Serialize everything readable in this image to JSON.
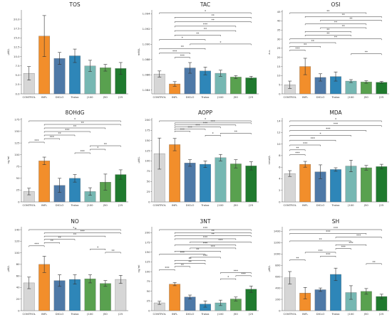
{
  "figure": {
    "background": "#ffffff"
  },
  "categories": [
    "CONTROL",
    "INFL",
    "DICLO",
    "Trolox",
    "J100",
    "J50",
    "J25"
  ],
  "colors": {
    "CONTROL": "#d6d6d6",
    "INFL": "#f28e2b",
    "DICLO": "#4e79a7",
    "Trolox": "#2e86b8",
    "J100": "#76b7b2",
    "J50": "#59a14f",
    "J25": "#1f7a2e"
  },
  "chart_data": [
    {
      "type": "bar",
      "title": "TOS",
      "ylabel": "μM/L",
      "ylim": [
        0,
        22.5
      ],
      "yticks": [
        0,
        2.5,
        5,
        7.5,
        10,
        12.5,
        15,
        17.5,
        20
      ],
      "ytick_labels": [
        "0.0",
        "2.5",
        "5.0",
        "7.5",
        "10.0",
        "12.5",
        "15.0",
        "17.5",
        "20.0"
      ],
      "categories": [
        "CONTROL",
        "INFL",
        "DICLO",
        "Trolox",
        "J100",
        "J50",
        "J25"
      ],
      "values": [
        5.5,
        15.5,
        9.5,
        10.2,
        7.5,
        7.0,
        6.8
      ],
      "errors": [
        1.8,
        5.5,
        1.6,
        1.8,
        1.5,
        0.9,
        1.6
      ],
      "colors": [
        "#d6d6d6",
        "#f28e2b",
        "#4e79a7",
        "#2e86b8",
        "#76b7b2",
        "#59a14f",
        "#1f7a2e"
      ],
      "significance": []
    },
    {
      "type": "bar",
      "title": "TAC",
      "ylabel": "mM/L",
      "ylim": [
        1.0835,
        1.0945
      ],
      "yticks": [
        1.084,
        1.086,
        1.088,
        1.09,
        1.092,
        1.094
      ],
      "ytick_labels": [
        "1.084",
        "1.086",
        "1.088",
        "1.090",
        "1.092",
        "1.094"
      ],
      "categories": [
        "CONTROL",
        "INFL",
        "DICLO",
        "Trolox",
        "J100",
        "J50",
        "J25"
      ],
      "values": [
        1.0861,
        1.0848,
        1.0869,
        1.0865,
        1.0862,
        1.0857,
        1.0856
      ],
      "errors": [
        0.0004,
        0.0003,
        0.0007,
        0.0005,
        0.0004,
        0.0002,
        0.0002
      ],
      "colors": [
        "#d6d6d6",
        "#f28e2b",
        "#4e79a7",
        "#2e86b8",
        "#76b7b2",
        "#59a14f",
        "#1f7a2e"
      ],
      "significance": [
        {
          "from": 0,
          "to": 6,
          "label": "*"
        },
        {
          "from": 1,
          "to": 6,
          "label": "**"
        },
        {
          "from": 1,
          "to": 6,
          "label": "**"
        },
        {
          "from": 1,
          "to": 5,
          "label": "***"
        },
        {
          "from": 1,
          "to": 5,
          "label": "**"
        },
        {
          "from": 1,
          "to": 4,
          "label": "**"
        },
        {
          "from": 0,
          "to": 3,
          "label": "*"
        },
        {
          "from": 2,
          "to": 6,
          "label": "*"
        },
        {
          "from": 0,
          "to": 3,
          "label": "**"
        },
        {
          "from": 0,
          "to": 2,
          "label": "***"
        },
        {
          "from": 1,
          "to": 2,
          "label": "***"
        }
      ]
    },
    {
      "type": "bar",
      "title": "OSI",
      "ylabel": "a.u.",
      "ylim": [
        0,
        46
      ],
      "yticks": [
        0,
        5,
        10,
        15,
        20,
        25,
        30,
        35,
        40,
        45
      ],
      "ytick_labels": [
        "0",
        "5",
        "10",
        "15",
        "20",
        "25",
        "30",
        "35",
        "40",
        "45"
      ],
      "categories": [
        "CONTROL",
        "INFL",
        "DICLO",
        "Trolox",
        "J100",
        "J50",
        "J25"
      ],
      "values": [
        5,
        15,
        9,
        9.5,
        7,
        6.5,
        6.3
      ],
      "errors": [
        2.0,
        4.5,
        2.0,
        2.5,
        0.8,
        0.7,
        0.5
      ],
      "colors": [
        "#d6d6d6",
        "#f28e2b",
        "#4e79a7",
        "#2e86b8",
        "#76b7b2",
        "#59a14f",
        "#1f7a2e"
      ],
      "significance": [
        {
          "from": 0,
          "to": 5,
          "label": "**"
        },
        {
          "from": 1,
          "to": 6,
          "label": "**"
        },
        {
          "from": 2,
          "to": 6,
          "label": "**"
        },
        {
          "from": 1,
          "to": 5,
          "label": "**"
        },
        {
          "from": 2,
          "to": 5,
          "label": "**"
        },
        {
          "from": 1,
          "to": 4,
          "label": "**"
        },
        {
          "from": 1,
          "to": 4,
          "label": "**"
        },
        {
          "from": 0,
          "to": 6,
          "label": "**"
        },
        {
          "from": 0,
          "to": 3,
          "label": "**"
        },
        {
          "from": 0,
          "to": 2,
          "label": "**"
        },
        {
          "from": 0,
          "to": 1,
          "label": "***"
        },
        {
          "from": 4,
          "to": 6,
          "label": "**"
        }
      ]
    },
    {
      "type": "bar",
      "title": "8OHdG",
      "ylabel": "ng/ml",
      "ylim": [
        0,
        178
      ],
      "yticks": [
        0,
        25,
        50,
        75,
        100,
        125,
        150,
        175
      ],
      "ytick_labels": [
        "0",
        "25",
        "50",
        "75",
        "100",
        "125",
        "150",
        "175"
      ],
      "categories": [
        "CONTROL",
        "INFL",
        "DICLO",
        "Trolox",
        "J100",
        "J50",
        "J25"
      ],
      "values": [
        22,
        87,
        35,
        50,
        22,
        42,
        58
      ],
      "errors": [
        7,
        8,
        15,
        8,
        8,
        17,
        10
      ],
      "colors": [
        "#d6d6d6",
        "#f28e2b",
        "#4e79a7",
        "#2e86b8",
        "#76b7b2",
        "#59a14f",
        "#1f7a2e"
      ],
      "significance": [
        {
          "from": 0,
          "to": 6,
          "label": "*"
        },
        {
          "from": 1,
          "to": 6,
          "label": "**"
        },
        {
          "from": 1,
          "to": 5,
          "label": "**"
        },
        {
          "from": 1,
          "to": 4,
          "label": "***"
        },
        {
          "from": 1,
          "to": 3,
          "label": "**"
        },
        {
          "from": 1,
          "to": 2,
          "label": "***"
        },
        {
          "from": 0,
          "to": 1,
          "label": "***"
        },
        {
          "from": 4,
          "to": 6,
          "label": "**"
        },
        {
          "from": 4,
          "to": 5,
          "label": "*"
        },
        {
          "from": 3,
          "to": 4,
          "label": "***"
        }
      ]
    },
    {
      "type": "bar",
      "title": "AOPP",
      "ylabel": "μM/L",
      "ylim": [
        0,
        205
      ],
      "yticks": [
        0,
        25,
        50,
        75,
        100,
        125,
        150,
        175,
        200
      ],
      "ytick_labels": [
        "0",
        "25",
        "50",
        "75",
        "100",
        "125",
        "150",
        "175",
        "200"
      ],
      "categories": [
        "CONTROL",
        "INFL",
        "DICLO",
        "Trolox",
        "J100",
        "J50",
        "J25"
      ],
      "values": [
        118,
        140,
        95,
        92,
        108,
        93,
        88
      ],
      "errors": [
        38,
        15,
        8,
        8,
        8,
        10,
        10
      ],
      "colors": [
        "#d6d6d6",
        "#f28e2b",
        "#4e79a7",
        "#2e86b8",
        "#76b7b2",
        "#59a14f",
        "#1f7a2e"
      ],
      "significance": [
        {
          "from": 0,
          "to": 6,
          "label": "*"
        },
        {
          "from": 1,
          "to": 6,
          "label": "***"
        },
        {
          "from": 1,
          "to": 5,
          "label": "***"
        },
        {
          "from": 1,
          "to": 4,
          "label": "***"
        },
        {
          "from": 1,
          "to": 3,
          "label": "***"
        },
        {
          "from": 1,
          "to": 2,
          "label": "***"
        },
        {
          "from": 4,
          "to": 6,
          "label": "**"
        },
        {
          "from": 3,
          "to": 4,
          "label": "*"
        }
      ]
    },
    {
      "type": "bar",
      "title": "MDA",
      "ylabel": "nmol/L",
      "ylim": [
        0,
        14.5
      ],
      "yticks": [
        0,
        2,
        4,
        6,
        8,
        10,
        12,
        14
      ],
      "ytick_labels": [
        "0",
        "2",
        "4",
        "6",
        "8",
        "10",
        "12",
        "14"
      ],
      "categories": [
        "CONTROL",
        "INFL",
        "DICLO",
        "Trolox",
        "J100",
        "J50",
        "J25"
      ],
      "values": [
        4.9,
        6.5,
        5.2,
        5.6,
        6.2,
        5.9,
        6.1
      ],
      "errors": [
        0.5,
        0.5,
        1.2,
        0.3,
        1.0,
        0.4,
        0.4
      ],
      "colors": [
        "#d6d6d6",
        "#f28e2b",
        "#4e79a7",
        "#2e86b8",
        "#76b7b2",
        "#59a14f",
        "#1f7a2e"
      ],
      "significance": [
        {
          "from": 0,
          "to": 6,
          "label": "*"
        },
        {
          "from": 0,
          "to": 6,
          "label": "***"
        },
        {
          "from": 0,
          "to": 5,
          "label": "***"
        },
        {
          "from": 0,
          "to": 4,
          "label": "*"
        },
        {
          "from": 0,
          "to": 3,
          "label": "***"
        },
        {
          "from": 0,
          "to": 2,
          "label": "***"
        },
        {
          "from": 0,
          "to": 1,
          "label": "**"
        },
        {
          "from": 0,
          "to": 1,
          "label": "***"
        }
      ]
    },
    {
      "type": "bar",
      "title": "NO",
      "ylabel": "μM/L",
      "ylim": [
        0,
        145
      ],
      "yticks": [
        0,
        20,
        40,
        60,
        80,
        100,
        120,
        140
      ],
      "ytick_labels": [
        "0",
        "20",
        "40",
        "60",
        "80",
        "100",
        "120",
        "140"
      ],
      "categories": [
        "CONTROL",
        "INFL",
        "DICLO",
        "Trolox",
        "J100",
        "J50",
        "J25"
      ],
      "values": [
        48,
        80,
        52,
        54,
        55,
        47,
        54
      ],
      "errors": [
        10,
        14,
        10,
        8,
        7,
        5,
        7
      ],
      "colors": [
        "#d6d6d6",
        "#f28e2b",
        "#4e79a7",
        "#2e86b8",
        "#59a14f",
        "#59a14f",
        "#d6d6d6"
      ],
      "significance": [
        {
          "from": 0,
          "to": 6,
          "label": "*+"
        },
        {
          "from": 1,
          "to": 6,
          "label": "***"
        },
        {
          "from": 1,
          "to": 5,
          "label": "**"
        },
        {
          "from": 1,
          "to": 3,
          "label": "**"
        },
        {
          "from": 1,
          "to": 2,
          "label": "**"
        },
        {
          "from": 0,
          "to": 1,
          "label": "***"
        },
        {
          "from": 4,
          "to": 5,
          "label": "*"
        },
        {
          "from": 5,
          "to": 6,
          "label": "**"
        }
      ]
    },
    {
      "type": "bar",
      "title": "3NT",
      "ylabel": "ng/ml",
      "ylim": [
        0,
        215
      ],
      "yticks": [
        0,
        25,
        50,
        75,
        100,
        125,
        150,
        175,
        200
      ],
      "ytick_labels": [
        "0",
        "25",
        "50",
        "75",
        "100",
        "125",
        "150",
        "175",
        "200"
      ],
      "categories": [
        "CONTROL",
        "INFL",
        "DICLO",
        "Trolox",
        "J100",
        "J50",
        "J25"
      ],
      "values": [
        20,
        68,
        35,
        17,
        20,
        30,
        55
      ],
      "errors": [
        4,
        4,
        5,
        8,
        7,
        5,
        8
      ],
      "colors": [
        "#d6d6d6",
        "#f28e2b",
        "#4e79a7",
        "#2e86b8",
        "#76b7b2",
        "#59a14f",
        "#1f7a2e"
      ],
      "significance": [
        {
          "from": 0,
          "to": 6,
          "label": "***"
        },
        {
          "from": 1,
          "to": 6,
          "label": "**"
        },
        {
          "from": 1,
          "to": 6,
          "label": "**"
        },
        {
          "from": 1,
          "to": 5,
          "label": "***"
        },
        {
          "from": 2,
          "to": 6,
          "label": "***"
        },
        {
          "from": 1,
          "to": 5,
          "label": "***"
        },
        {
          "from": 2,
          "to": 5,
          "label": "***"
        },
        {
          "from": 1,
          "to": 4,
          "label": "**"
        },
        {
          "from": 0,
          "to": 3,
          "label": "***"
        },
        {
          "from": 2,
          "to": 4,
          "label": "***"
        },
        {
          "from": 1,
          "to": 3,
          "label": "**"
        },
        {
          "from": 1,
          "to": 3,
          "label": "**"
        },
        {
          "from": 1,
          "to": 2,
          "label": "**"
        },
        {
          "from": 0,
          "to": 1,
          "label": "***"
        },
        {
          "from": 4,
          "to": 6,
          "label": "***"
        },
        {
          "from": 5,
          "to": 6,
          "label": "***"
        },
        {
          "from": 4,
          "to": 5,
          "label": "*"
        }
      ]
    },
    {
      "type": "bar",
      "title": "SH",
      "ylabel": "μM/L",
      "ylim": [
        0,
        1480
      ],
      "yticks": [
        0,
        200,
        400,
        600,
        800,
        1000,
        1200,
        1400
      ],
      "ytick_labels": [
        "0",
        "200",
        "400",
        "600",
        "800",
        "1000",
        "1200",
        "1400"
      ],
      "categories": [
        "CONTROL",
        "INFL",
        "DICLO",
        "Trolox",
        "J100",
        "J50",
        "J25"
      ],
      "values": [
        580,
        310,
        370,
        640,
        320,
        340,
        250
      ],
      "errors": [
        110,
        100,
        30,
        110,
        120,
        50,
        40
      ],
      "colors": [
        "#d6d6d6",
        "#f28e2b",
        "#4e79a7",
        "#2e86b8",
        "#76b7b2",
        "#59a14f",
        "#1f7a2e"
      ],
      "significance": [
        {
          "from": 0,
          "to": 6,
          "label": "***"
        },
        {
          "from": 0,
          "to": 5,
          "label": "***"
        },
        {
          "from": 3,
          "to": 6,
          "label": "***"
        },
        {
          "from": 0,
          "to": 4,
          "label": "**"
        },
        {
          "from": 3,
          "to": 5,
          "label": "***"
        },
        {
          "from": 3,
          "to": 4,
          "label": "***"
        },
        {
          "from": 1,
          "to": 3,
          "label": "***"
        },
        {
          "from": 2,
          "to": 3,
          "label": "***"
        },
        {
          "from": 0,
          "to": 1,
          "label": "**"
        },
        {
          "from": 5,
          "to": 6,
          "label": "**"
        }
      ]
    }
  ]
}
